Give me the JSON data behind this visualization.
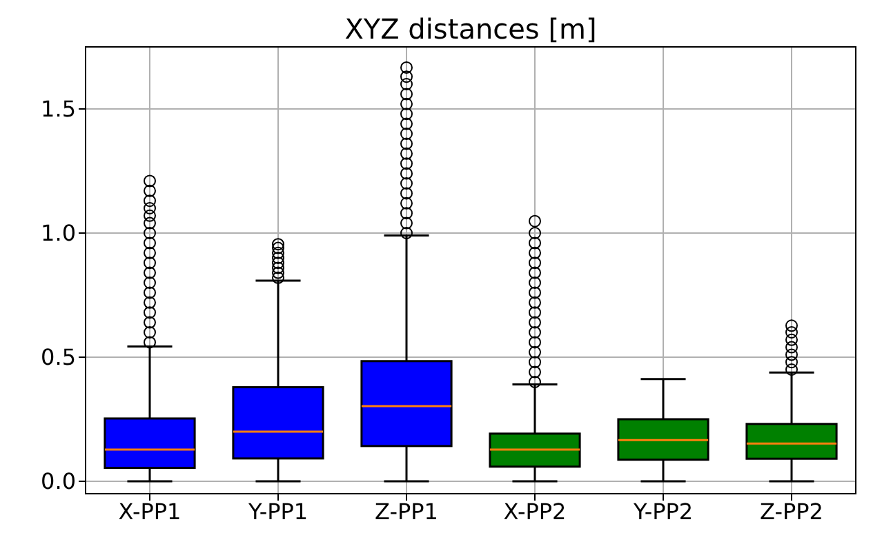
{
  "chart_data": {
    "type": "box",
    "title": "XYZ distances [m]",
    "categories": [
      "X-PP1",
      "Y-PP1",
      "Z-PP1",
      "X-PP2",
      "Y-PP2",
      "Z-PP2"
    ],
    "colors": [
      "#0000ff",
      "#0000ff",
      "#0000ff",
      "#008000",
      "#008000",
      "#008000"
    ],
    "boxes": [
      {
        "low": 0,
        "q1": 0.054,
        "median": 0.128,
        "q3": 0.253,
        "high": 0.543,
        "outliers": [
          0.56,
          0.6,
          0.64,
          0.68,
          0.72,
          0.76,
          0.8,
          0.84,
          0.88,
          0.92,
          0.96,
          1.0,
          1.04,
          1.07,
          1.1,
          1.13,
          1.17,
          1.21
        ]
      },
      {
        "low": 0,
        "q1": 0.092,
        "median": 0.2,
        "q3": 0.379,
        "high": 0.808,
        "outliers": [
          0.82,
          0.84,
          0.86,
          0.88,
          0.9,
          0.92,
          0.94,
          0.955
        ]
      },
      {
        "low": 0,
        "q1": 0.142,
        "median": 0.303,
        "q3": 0.484,
        "high": 0.99,
        "outliers": [
          1.0,
          1.04,
          1.08,
          1.12,
          1.16,
          1.2,
          1.24,
          1.28,
          1.32,
          1.36,
          1.4,
          1.44,
          1.48,
          1.52,
          1.56,
          1.6,
          1.63,
          1.667
        ]
      },
      {
        "low": 0,
        "q1": 0.059,
        "median": 0.128,
        "q3": 0.192,
        "high": 0.39,
        "outliers": [
          0.4,
          0.44,
          0.48,
          0.52,
          0.56,
          0.6,
          0.64,
          0.68,
          0.72,
          0.76,
          0.8,
          0.84,
          0.88,
          0.92,
          0.96,
          1.0,
          1.048
        ]
      },
      {
        "low": 0,
        "q1": 0.087,
        "median": 0.166,
        "q3": 0.25,
        "high": 0.412
      },
      {
        "low": 0,
        "q1": 0.091,
        "median": 0.152,
        "q3": 0.231,
        "high": 0.438,
        "outliers": [
          0.45,
          0.48,
          0.51,
          0.54,
          0.57,
          0.6,
          0.627
        ]
      }
    ],
    "ylim": [
      -0.05,
      1.75
    ],
    "yticks": [
      {
        "value": 0,
        "label": "0.0"
      },
      {
        "value": 0.5,
        "label": "0.5"
      },
      {
        "value": 1,
        "label": "1.0"
      },
      {
        "value": 1.5,
        "label": "1.5"
      }
    ],
    "grid": true
  }
}
